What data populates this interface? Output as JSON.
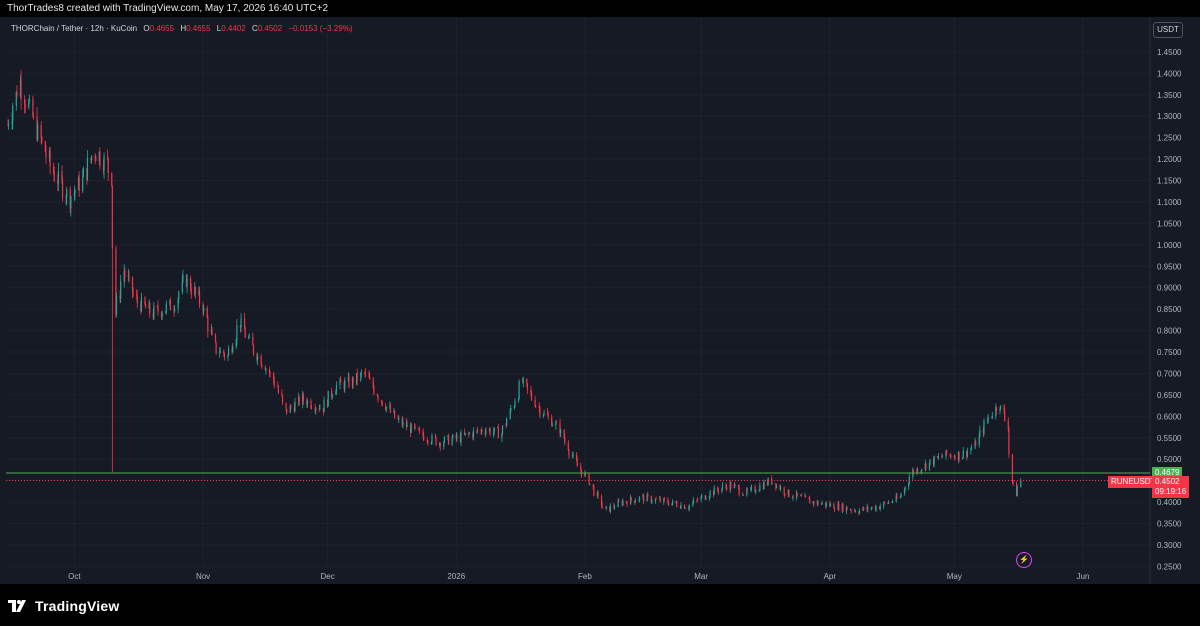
{
  "header": {
    "title": "ThorTrades8 created with TradingView.com, May 17, 2026 16:40 UTC+2"
  },
  "legend": {
    "symbol": "THORChain / Tether · 12h · KuCoin",
    "open_label": "O",
    "open": "0.4655",
    "high_label": "H",
    "high": "0.4655",
    "low_label": "L",
    "low": "0.4402",
    "close_label": "C",
    "close": "0.4502",
    "change": "−0.0153 (−3.29%)"
  },
  "currency_button": "USDT",
  "price_labels": {
    "level_value": "0.4679",
    "ticker": "RUNEUSDT",
    "last_price": "0.4502",
    "countdown": "09:19:16"
  },
  "footer": {
    "brand": "TradingView"
  },
  "colors": {
    "up": "#26a69a",
    "down": "#f23645",
    "level": "#4caf50",
    "bg": "#161a25",
    "grid": "#1e222d"
  },
  "chart_data": {
    "type": "candlestick",
    "ylim": [
      0.25,
      1.46
    ],
    "y_ticks": [
      "1.4500",
      "1.4000",
      "1.3500",
      "1.3000",
      "1.2500",
      "1.2000",
      "1.1500",
      "1.1000",
      "1.0500",
      "1.0000",
      "0.9500",
      "0.9000",
      "0.8500",
      "0.8000",
      "0.7500",
      "0.7000",
      "0.6500",
      "0.6000",
      "0.5500",
      "0.5000",
      "0.4500",
      "0.4000",
      "0.3500",
      "0.3000",
      "0.2500"
    ],
    "x_ticks": [
      {
        "label": "Oct",
        "date": "2025-10-01"
      },
      {
        "label": "Nov",
        "date": "2025-11-01"
      },
      {
        "label": "Dec",
        "date": "2025-12-01"
      },
      {
        "label": "2026",
        "date": "2026-01-01"
      },
      {
        "label": "Feb",
        "date": "2026-02-01"
      },
      {
        "label": "Mar",
        "date": "2026-03-01"
      },
      {
        "label": "Apr",
        "date": "2026-04-01"
      },
      {
        "label": "May",
        "date": "2026-05-01"
      },
      {
        "label": "Jun",
        "date": "2026-06-01"
      }
    ],
    "horizontal_line": 0.4679,
    "last_price": 0.4502,
    "close_path": [
      {
        "date": "2025-09-15",
        "price": 1.28
      },
      {
        "date": "2025-09-18",
        "price": 1.38
      },
      {
        "date": "2025-09-22",
        "price": 1.27
      },
      {
        "date": "2025-09-26",
        "price": 1.17
      },
      {
        "date": "2025-09-30",
        "price": 1.11
      },
      {
        "date": "2025-10-03",
        "price": 1.15
      },
      {
        "date": "2025-10-06",
        "price": 1.22
      },
      {
        "date": "2025-10-09",
        "price": 1.19
      },
      {
        "date": "2025-10-10",
        "price": 1.16
      },
      {
        "date": "2025-10-11",
        "price": 0.84
      },
      {
        "date": "2025-10-13",
        "price": 0.94
      },
      {
        "date": "2025-10-16",
        "price": 0.87
      },
      {
        "date": "2025-10-20",
        "price": 0.84
      },
      {
        "date": "2025-10-25",
        "price": 0.86
      },
      {
        "date": "2025-10-28",
        "price": 0.92
      },
      {
        "date": "2025-11-01",
        "price": 0.86
      },
      {
        "date": "2025-11-04",
        "price": 0.76
      },
      {
        "date": "2025-11-07",
        "price": 0.74
      },
      {
        "date": "2025-11-10",
        "price": 0.82
      },
      {
        "date": "2025-11-13",
        "price": 0.76
      },
      {
        "date": "2025-11-16",
        "price": 0.72
      },
      {
        "date": "2025-11-19",
        "price": 0.67
      },
      {
        "date": "2025-11-21",
        "price": 0.61
      },
      {
        "date": "2025-11-25",
        "price": 0.64
      },
      {
        "date": "2025-11-30",
        "price": 0.62
      },
      {
        "date": "2025-12-03",
        "price": 0.67
      },
      {
        "date": "2025-12-07",
        "price": 0.68
      },
      {
        "date": "2025-12-10",
        "price": 0.7
      },
      {
        "date": "2025-12-14",
        "price": 0.64
      },
      {
        "date": "2025-12-18",
        "price": 0.59
      },
      {
        "date": "2025-12-23",
        "price": 0.56
      },
      {
        "date": "2025-12-28",
        "price": 0.54
      },
      {
        "date": "2026-01-02",
        "price": 0.55
      },
      {
        "date": "2026-01-08",
        "price": 0.57
      },
      {
        "date": "2026-01-12",
        "price": 0.56
      },
      {
        "date": "2026-01-15",
        "price": 0.63
      },
      {
        "date": "2026-01-17",
        "price": 0.68
      },
      {
        "date": "2026-01-21",
        "price": 0.62
      },
      {
        "date": "2026-01-26",
        "price": 0.57
      },
      {
        "date": "2026-01-30",
        "price": 0.49
      },
      {
        "date": "2026-02-02",
        "price": 0.45
      },
      {
        "date": "2026-02-06",
        "price": 0.38
      },
      {
        "date": "2026-02-10",
        "price": 0.4
      },
      {
        "date": "2026-02-15",
        "price": 0.41
      },
      {
        "date": "2026-02-21",
        "price": 0.4
      },
      {
        "date": "2026-02-26",
        "price": 0.39
      },
      {
        "date": "2026-03-03",
        "price": 0.42
      },
      {
        "date": "2026-03-08",
        "price": 0.44
      },
      {
        "date": "2026-03-12",
        "price": 0.42
      },
      {
        "date": "2026-03-18",
        "price": 0.45
      },
      {
        "date": "2026-03-22",
        "price": 0.42
      },
      {
        "date": "2026-03-28",
        "price": 0.4
      },
      {
        "date": "2026-04-03",
        "price": 0.39
      },
      {
        "date": "2026-04-08",
        "price": 0.38
      },
      {
        "date": "2026-04-13",
        "price": 0.39
      },
      {
        "date": "2026-04-18",
        "price": 0.41
      },
      {
        "date": "2026-04-21",
        "price": 0.47
      },
      {
        "date": "2026-04-25",
        "price": 0.49
      },
      {
        "date": "2026-04-29",
        "price": 0.51
      },
      {
        "date": "2026-05-03",
        "price": 0.51
      },
      {
        "date": "2026-05-06",
        "price": 0.53
      },
      {
        "date": "2026-05-09",
        "price": 0.59
      },
      {
        "date": "2026-05-12",
        "price": 0.63
      },
      {
        "date": "2026-05-14",
        "price": 0.58
      },
      {
        "date": "2026-05-15",
        "price": 0.45
      },
      {
        "date": "2026-05-16",
        "price": 0.42
      },
      {
        "date": "2026-05-17",
        "price": 0.4502
      }
    ]
  }
}
